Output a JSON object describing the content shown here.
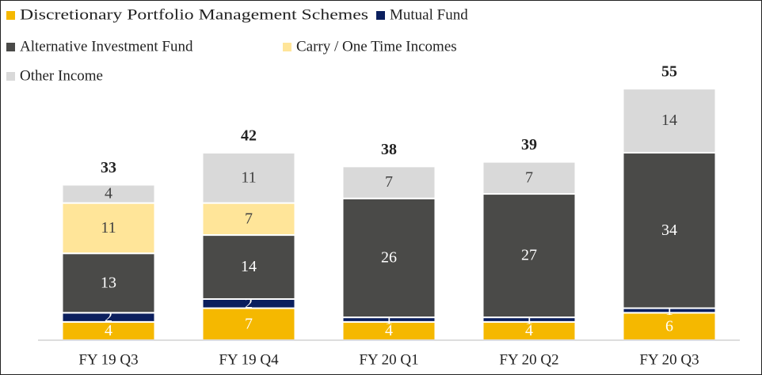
{
  "chart_data": {
    "type": "stacked_bar",
    "categories": [
      "FY 19 Q3",
      "FY 19 Q4",
      "FY 20 Q1",
      "FY 20 Q2",
      "FY 20 Q3"
    ],
    "series": [
      {
        "name": "Discretionary Portfolio Management Schemes",
        "color": "#f5b800",
        "values": [
          4,
          7,
          4,
          4,
          6
        ]
      },
      {
        "name": "Mutual Fund",
        "color": "#0b1f5e",
        "values": [
          2,
          2,
          1,
          1,
          1
        ]
      },
      {
        "name": "Alternative Investment Fund",
        "color": "#4a4a48",
        "values": [
          13,
          14,
          26,
          27,
          34
        ]
      },
      {
        "name": "Carry / One Time Incomes",
        "color": "#ffe599",
        "values": [
          11,
          7,
          null,
          null,
          null
        ]
      },
      {
        "name": "Other Income",
        "color": "#d9d9d9",
        "values": [
          4,
          11,
          7,
          7,
          14
        ]
      }
    ],
    "totals": [
      33,
      42,
      38,
      39,
      55
    ]
  }
}
